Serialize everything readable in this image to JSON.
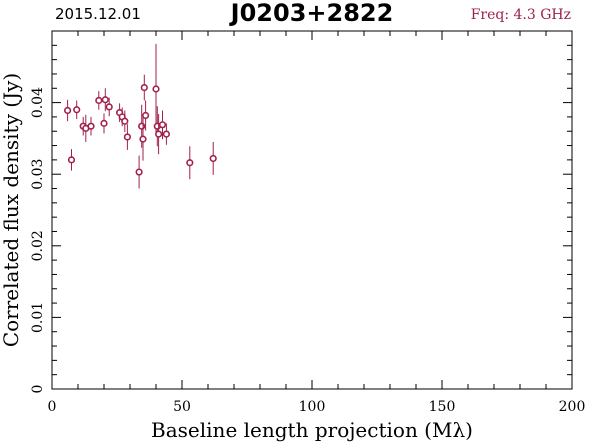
{
  "chart_data": {
    "type": "scatter",
    "title": "J0203+2822",
    "date": "2015.12.01",
    "frequency": "Freq: 4.3 GHz",
    "xlabel": "Baseline length projection (Mλ)",
    "ylabel": "Correlated flux density (Jy)",
    "xlim": [
      0,
      200
    ],
    "ylim": [
      0,
      0.05
    ],
    "xticks": [
      0,
      50,
      100,
      150,
      200
    ],
    "xtick_labels": [
      "0",
      "50",
      "100",
      "150",
      "200"
    ],
    "yticks": [
      0,
      0.01,
      0.02,
      0.03,
      0.04
    ],
    "ytick_labels": [
      "0",
      "0.01",
      "0.02",
      "0.03",
      "0.04"
    ],
    "grid": false,
    "colors": {
      "points": "#a0204a",
      "freq_label": "#a0204a",
      "axes": "#000000"
    },
    "points": [
      {
        "x": 6,
        "y": 0.0389,
        "err": 0.0015
      },
      {
        "x": 7.5,
        "y": 0.032,
        "err": 0.0015
      },
      {
        "x": 9.5,
        "y": 0.039,
        "err": 0.0013
      },
      {
        "x": 12,
        "y": 0.0367,
        "err": 0.0013
      },
      {
        "x": 13,
        "y": 0.0364,
        "err": 0.0019
      },
      {
        "x": 15,
        "y": 0.0367,
        "err": 0.0013
      },
      {
        "x": 18,
        "y": 0.0403,
        "err": 0.0013
      },
      {
        "x": 20,
        "y": 0.0371,
        "err": 0.0014
      },
      {
        "x": 20.5,
        "y": 0.0404,
        "err": 0.0016
      },
      {
        "x": 22,
        "y": 0.0394,
        "err": 0.0013
      },
      {
        "x": 26,
        "y": 0.0386,
        "err": 0.0013
      },
      {
        "x": 27,
        "y": 0.038,
        "err": 0.0013
      },
      {
        "x": 28,
        "y": 0.0374,
        "err": 0.0015
      },
      {
        "x": 29,
        "y": 0.0352,
        "err": 0.0018
      },
      {
        "x": 33.5,
        "y": 0.0303,
        "err": 0.0023
      },
      {
        "x": 34.5,
        "y": 0.0367,
        "err": 0.003
      },
      {
        "x": 35,
        "y": 0.0349,
        "err": 0.003
      },
      {
        "x": 35.5,
        "y": 0.0421,
        "err": 0.0018
      },
      {
        "x": 36,
        "y": 0.0382,
        "err": 0.0021
      },
      {
        "x": 40,
        "y": 0.0419,
        "err": 0.0063
      },
      {
        "x": 40.5,
        "y": 0.0367,
        "err": 0.0028
      },
      {
        "x": 41,
        "y": 0.0356,
        "err": 0.0028
      },
      {
        "x": 42.5,
        "y": 0.0369,
        "err": 0.002
      },
      {
        "x": 44,
        "y": 0.0356,
        "err": 0.0015
      },
      {
        "x": 53,
        "y": 0.0316,
        "err": 0.0023
      },
      {
        "x": 62,
        "y": 0.0322,
        "err": 0.0023
      }
    ]
  }
}
